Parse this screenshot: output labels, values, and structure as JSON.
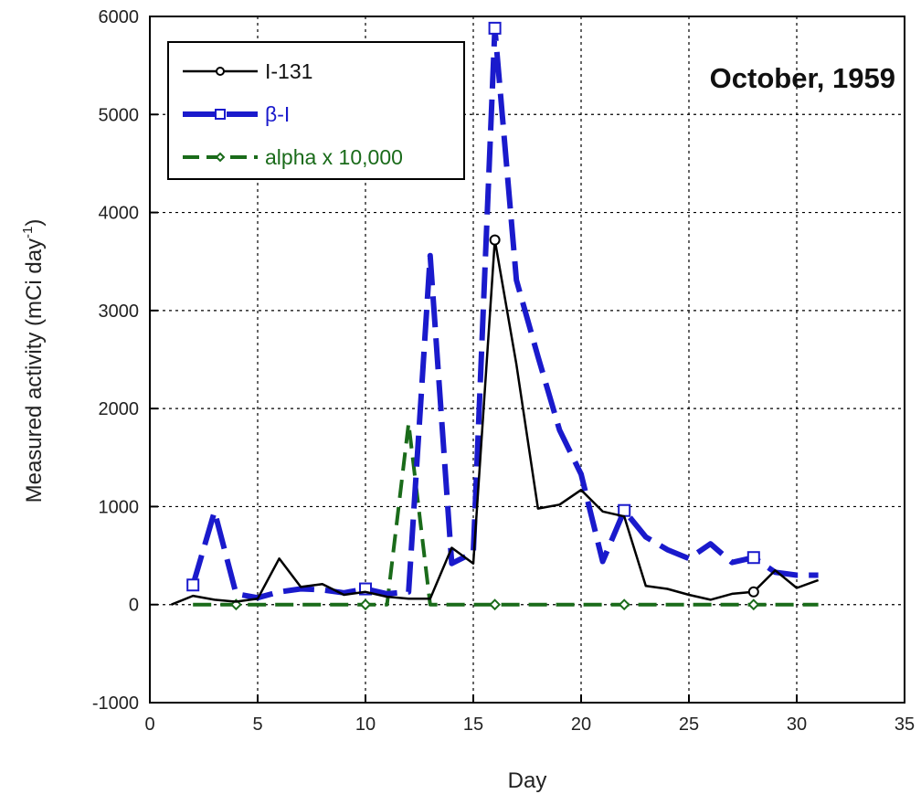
{
  "chart_data": {
    "type": "line",
    "xlabel": "Day",
    "ylabel": "Measured activity (mCi day",
    "ylabel_sup": "-1",
    "ylabel_close": ")",
    "xlim": [
      0,
      35
    ],
    "ylim": [
      -1000,
      6000
    ],
    "x_ticks": [
      0,
      5,
      10,
      15,
      20,
      25,
      30,
      35
    ],
    "y_ticks": [
      -1000,
      0,
      1000,
      2000,
      3000,
      4000,
      5000,
      6000
    ],
    "grid": true,
    "legend_position": "top-left",
    "annotation": "October, 1959",
    "series": [
      {
        "name": "I-131",
        "color": "#000000",
        "x": [
          1,
          2,
          3,
          4,
          5,
          6,
          7,
          8,
          9,
          10,
          11,
          12,
          13,
          14,
          15,
          16,
          17,
          18,
          19,
          20,
          21,
          22,
          23,
          24,
          25,
          26,
          27,
          28,
          29,
          30,
          31
        ],
        "y": [
          0,
          90,
          50,
          30,
          60,
          470,
          180,
          210,
          100,
          130,
          80,
          60,
          60,
          580,
          420,
          3720,
          2450,
          980,
          1020,
          1170,
          950,
          900,
          190,
          160,
          100,
          50,
          110,
          130,
          350,
          170,
          250
        ]
      },
      {
        "name": "β-I",
        "color": "#1a1acc",
        "x": [
          2,
          3,
          4,
          5,
          6,
          7,
          8,
          9,
          10,
          11,
          12,
          13,
          14,
          15,
          16,
          17,
          18,
          19,
          20,
          21,
          22,
          23,
          24,
          25,
          26,
          27,
          28,
          29,
          30,
          31
        ],
        "y": [
          200,
          950,
          110,
          70,
          130,
          160,
          150,
          120,
          160,
          110,
          130,
          3560,
          420,
          530,
          5880,
          3310,
          2530,
          1780,
          1330,
          440,
          960,
          690,
          560,
          470,
          620,
          430,
          480,
          330,
          300,
          300
        ]
      },
      {
        "name": "alpha x 10,000",
        "color": "#1a6b1a",
        "x": [
          2,
          3,
          4,
          5,
          6,
          7,
          8,
          9,
          10,
          11,
          12,
          13,
          14,
          15,
          16,
          17,
          18,
          19,
          20,
          21,
          22,
          23,
          24,
          25,
          26,
          27,
          28,
          29,
          30,
          31
        ],
        "y": [
          0,
          0,
          0,
          0,
          0,
          0,
          0,
          0,
          0,
          0,
          1850,
          0,
          0,
          0,
          0,
          0,
          0,
          0,
          0,
          0,
          0,
          0,
          0,
          0,
          0,
          0,
          0,
          0,
          0,
          0
        ]
      }
    ]
  }
}
